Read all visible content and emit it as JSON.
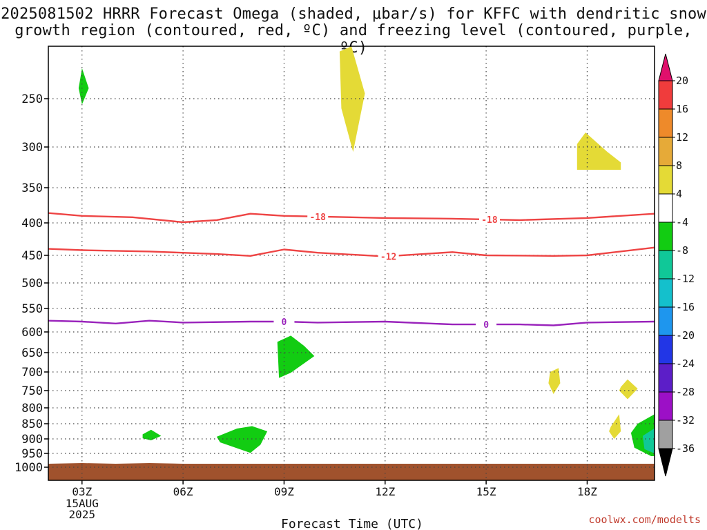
{
  "title_line1": "2025081502 HRRR Forecast Omega (shaded, μbar/s) for KFFC with dendritic snow",
  "title_line2": "growth region (contoured, red, ºC) and freezing level (contoured, purple, ºC)",
  "credit": "coolwx.com/modelts",
  "chart_data": {
    "type": "heatmap",
    "title": "2025081502 HRRR Forecast Omega (shaded, μbar/s) for KFFC with dendritic snow growth region (contoured, red, ºC) and freezing level (contoured, purple, ºC)",
    "xlabel": "Forecast Time (UTC)",
    "ylabel": "",
    "x_ticks": [
      {
        "hour": 3,
        "label": "03Z"
      },
      {
        "hour": 6,
        "label": "06Z"
      },
      {
        "hour": 9,
        "label": "09Z"
      },
      {
        "hour": 12,
        "label": "12Z"
      },
      {
        "hour": 15,
        "label": "15Z"
      },
      {
        "hour": 18,
        "label": "18Z"
      }
    ],
    "x_date_label": [
      "15AUG",
      "2025"
    ],
    "xlim_hours": [
      2,
      20
    ],
    "y_ticks": [
      250,
      300,
      350,
      400,
      450,
      500,
      550,
      600,
      650,
      700,
      750,
      800,
      850,
      900,
      950,
      1000
    ],
    "y_tick_labels": [
      "250",
      "300",
      "350",
      "400",
      "450",
      "500",
      "550",
      "600",
      "650",
      "700",
      "750",
      "800",
      "850",
      "900",
      "950",
      "1000"
    ],
    "ylim_hpa": [
      1030,
      200
    ],
    "grid": true,
    "colorbar": {
      "labels": [
        "20",
        "16",
        "12",
        "8",
        "4",
        "-4",
        "-8",
        "-12",
        "-16",
        "-20",
        "-24",
        "-28",
        "-32",
        "-36"
      ],
      "bins": [
        {
          "lo": 16,
          "hi": 20,
          "color": "#f03c3c"
        },
        {
          "lo": 12,
          "hi": 16,
          "color": "#ee8a2a"
        },
        {
          "lo": 8,
          "hi": 12,
          "color": "#e6aa38"
        },
        {
          "lo": 4,
          "hi": 8,
          "color": "#e4da36"
        },
        {
          "lo": -4,
          "hi": 4,
          "color": "#ffffff"
        },
        {
          "lo": -8,
          "hi": -4,
          "color": "#12cc12"
        },
        {
          "lo": -12,
          "hi": -8,
          "color": "#10c898"
        },
        {
          "lo": -16,
          "hi": -12,
          "color": "#14c0cc"
        },
        {
          "lo": -20,
          "hi": -16,
          "color": "#1e96ee"
        },
        {
          "lo": -24,
          "hi": -20,
          "color": "#2236e6"
        },
        {
          "lo": -28,
          "hi": -24,
          "color": "#5c1ec8"
        },
        {
          "lo": -32,
          "hi": -28,
          "color": "#9c10c6"
        },
        {
          "lo": -36,
          "hi": -32,
          "color": "#a0a0a0"
        }
      ],
      "top_arrow_color": "#e0106c",
      "bottom_arrow_color": "#000000"
    },
    "contours": [
      {
        "label": "-18",
        "color": "#ee4444",
        "label_hours": [
          10.0,
          15.1
        ],
        "points": [
          [
            2,
            386
          ],
          [
            3,
            390
          ],
          [
            4.5,
            392
          ],
          [
            6,
            399
          ],
          [
            7,
            396
          ],
          [
            8,
            387
          ],
          [
            9,
            390
          ],
          [
            10,
            391
          ],
          [
            12,
            393
          ],
          [
            14,
            394
          ],
          [
            16,
            396
          ],
          [
            18,
            393
          ],
          [
            20,
            387
          ]
        ]
      },
      {
        "label": "-12",
        "color": "#ee4444",
        "label_hours": [
          12.1
        ],
        "points": [
          [
            2,
            440
          ],
          [
            3,
            442
          ],
          [
            5,
            444
          ],
          [
            7,
            448
          ],
          [
            8,
            451
          ],
          [
            9,
            441
          ],
          [
            10,
            446
          ],
          [
            12,
            452
          ],
          [
            14,
            445
          ],
          [
            15,
            450
          ],
          [
            17,
            451
          ],
          [
            18,
            450
          ],
          [
            20,
            438
          ]
        ]
      },
      {
        "label": "0",
        "color": "#9922bb",
        "label_hours": [
          9.0,
          15.0
        ],
        "points": [
          [
            2,
            576
          ],
          [
            3,
            578
          ],
          [
            4,
            582
          ],
          [
            5,
            576
          ],
          [
            6,
            580
          ],
          [
            8,
            578
          ],
          [
            9,
            578
          ],
          [
            10,
            580
          ],
          [
            12,
            578
          ],
          [
            14,
            584
          ],
          [
            16,
            584
          ],
          [
            17,
            586
          ],
          [
            18,
            580
          ],
          [
            20,
            578
          ]
        ]
      }
    ],
    "omega_regions": [
      {
        "value": -5,
        "label": "upward motion",
        "points": [
          [
            2.9,
            240
          ],
          [
            3.0,
            221
          ],
          [
            3.2,
            240
          ],
          [
            3.0,
            256
          ]
        ]
      },
      {
        "value": 5,
        "label": "downward motion",
        "points": [
          [
            10.65,
            205
          ],
          [
            11.0,
            200
          ],
          [
            11.4,
            245
          ],
          [
            11.05,
            306
          ],
          [
            10.7,
            260
          ]
        ]
      },
      {
        "value": 5,
        "label": "downward motion",
        "points": [
          [
            17.7,
            297
          ],
          [
            17.95,
            285
          ],
          [
            18.6,
            306
          ],
          [
            19.0,
            319
          ],
          [
            19.0,
            328
          ],
          [
            17.7,
            328
          ]
        ]
      },
      {
        "value": -5,
        "label": "upward motion",
        "points": [
          [
            8.8,
            624
          ],
          [
            9.2,
            609
          ],
          [
            9.6,
            634
          ],
          [
            9.9,
            659
          ],
          [
            9.2,
            702
          ],
          [
            8.85,
            716
          ]
        ]
      },
      {
        "value": -5,
        "label": "upward motion",
        "points": [
          [
            4.8,
            885
          ],
          [
            5.05,
            870
          ],
          [
            5.35,
            890
          ],
          [
            5.05,
            905
          ],
          [
            4.8,
            898
          ]
        ]
      },
      {
        "value": -5,
        "label": "upward motion",
        "points": [
          [
            7.0,
            893
          ],
          [
            7.6,
            866
          ],
          [
            8.05,
            858
          ],
          [
            8.5,
            875
          ],
          [
            8.3,
            920
          ],
          [
            8.0,
            948
          ],
          [
            7.1,
            912
          ]
        ]
      },
      {
        "value": 5,
        "label": "downward motion",
        "points": [
          [
            16.9,
            700
          ],
          [
            17.15,
            690
          ],
          [
            17.2,
            730
          ],
          [
            17.0,
            760
          ],
          [
            16.85,
            730
          ]
        ]
      },
      {
        "value": 5,
        "label": "downward motion",
        "points": [
          [
            19.0,
            740
          ],
          [
            19.2,
            720
          ],
          [
            19.5,
            745
          ],
          [
            19.2,
            775
          ],
          [
            18.95,
            750
          ]
        ]
      },
      {
        "value": 5,
        "label": "downward motion",
        "points": [
          [
            18.7,
            860
          ],
          [
            18.95,
            820
          ],
          [
            19.0,
            875
          ],
          [
            18.8,
            900
          ],
          [
            18.65,
            875
          ]
        ]
      },
      {
        "value": -6,
        "label": "upward motion",
        "points": [
          [
            20,
            820
          ],
          [
            19.5,
            850
          ],
          [
            19.3,
            880
          ],
          [
            19.4,
            930
          ],
          [
            19.9,
            960
          ],
          [
            20,
            960
          ]
        ]
      },
      {
        "value": -10,
        "label": "upward motion",
        "points": [
          [
            20,
            865
          ],
          [
            19.65,
            890
          ],
          [
            19.7,
            935
          ],
          [
            20,
            950
          ]
        ]
      }
    ],
    "terrain": {
      "color": "#a0522d",
      "top_hpa": 985
    }
  }
}
